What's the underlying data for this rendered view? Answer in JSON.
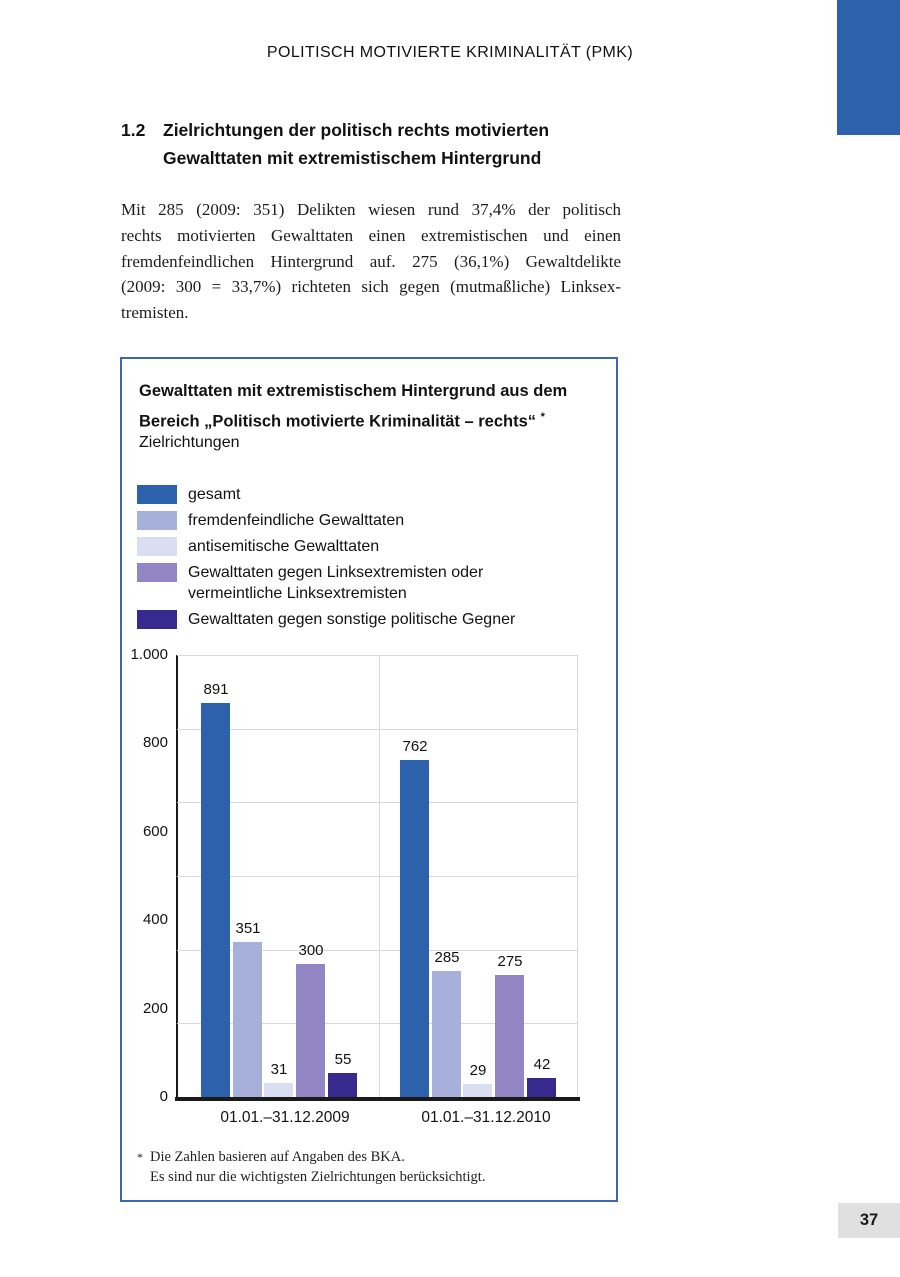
{
  "page": {
    "header_title": "POLITISCH MOTIVIERTE KRIMINALITÄT (PMK)",
    "page_number": "37"
  },
  "section": {
    "number": "1.2",
    "heading_lines": [
      "Zielrichtungen der politisch rechts motivierten",
      "Gewalttaten mit extremistischem Hintergrund"
    ],
    "paragraph_lines": [
      "Mit 285 (2009: 351) Delikten wiesen rund 37,4% der politisch",
      "rechts motivierten Gewalttaten einen extremistischen und einen",
      "fremdenfeindlichen Hintergrund auf. 275 (36,1%) Gewaltdelikte",
      "(2009: 300 = 33,7%) richteten sich gegen (mutmaßliche) Linksex-",
      "tremisten."
    ]
  },
  "chart_box": {
    "title_lines": [
      "Gewalttaten mit extremistischem Hintergrund aus dem",
      "Bereich „Politisch motivierte Kriminalität – rechts“"
    ],
    "title_asterisk": "*",
    "subtitle": "Zielrichtungen",
    "footnote": {
      "marker": "*",
      "lines": [
        "Die Zahlen basieren auf Angaben des BKA.",
        "Es sind nur die wichtigsten Zielrichtungen berücksichtigt."
      ]
    }
  },
  "chart_data": {
    "type": "bar",
    "categories": [
      "01.01.–31.12.2009",
      "01.01.–31.12.2010"
    ],
    "series": [
      {
        "name": "gesamt",
        "color": "#2e61ac",
        "values": [
          891,
          762
        ],
        "legend_lines": [
          "gesamt"
        ]
      },
      {
        "name": "fremdenfeindliche Gewalttaten",
        "color": "#a6b0db",
        "values": [
          351,
          285
        ],
        "legend_lines": [
          "fremdenfeindliche Gewalttaten"
        ]
      },
      {
        "name": "antisemitische Gewalttaten",
        "color": "#dadef2",
        "values": [
          31,
          29
        ],
        "legend_lines": [
          "antisemitische Gewalttaten"
        ]
      },
      {
        "name": "Gewalttaten gegen Linksextremisten oder vermeintliche Linksextremisten",
        "color": "#9186c3",
        "values": [
          300,
          275
        ],
        "legend_lines": [
          "Gewalttaten gegen Linksextremisten oder",
          "vermeintliche Linksextremisten"
        ]
      },
      {
        "name": "Gewalttaten gegen sonstige politische Gegner",
        "color": "#372a8e",
        "values": [
          55,
          42
        ],
        "legend_lines": [
          "Gewalttaten gegen sonstige politische Gegner"
        ]
      }
    ],
    "ylim": [
      0,
      1000
    ],
    "y_ticks": [
      "1.000",
      "800",
      "600",
      "400",
      "200",
      "0"
    ],
    "grid": {
      "h_divisions": 6,
      "v_mid": true
    },
    "legend_position": "top-left",
    "colors": {
      "gridline": "#d8d8d8",
      "axis": "#1a1a1a"
    }
  },
  "colors": {
    "corner_rect": "#2e61ac",
    "box_border": "#3e68ad",
    "page_number_bg": "#e0e0e0"
  }
}
